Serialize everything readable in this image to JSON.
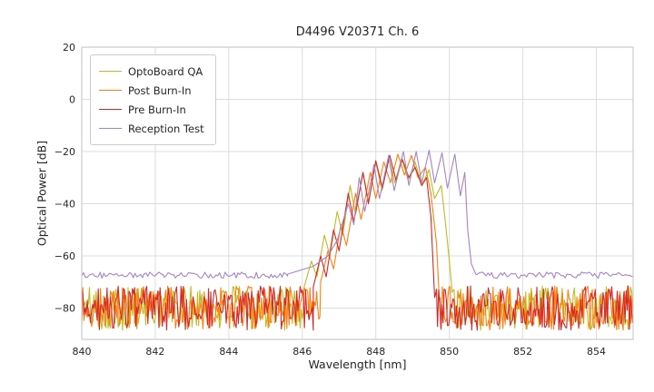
{
  "figure": {
    "background": "#ffffff",
    "grid_color": "#dcdcdc",
    "frame_color": "#cccccc",
    "text_color": "#262626",
    "tick_font_size": 11
  },
  "chart_data": {
    "type": "line",
    "title": "D4496 V20371 Ch. 6",
    "xlabel": "Wavelength [nm]",
    "ylabel": "Optical Power [dB]",
    "xlim": [
      840,
      855
    ],
    "ylim": [
      -92,
      20
    ],
    "xticks": [
      840,
      842,
      844,
      846,
      848,
      850,
      852,
      854
    ],
    "yticks": [
      20,
      0,
      -20,
      -40,
      -60,
      -80
    ],
    "grid": true,
    "legend_position": "upper left",
    "series": [
      {
        "name": "OptoBoard QA",
        "color": "#bcbd22",
        "noise_floor": {
          "level": -80,
          "amplitude": 8.5,
          "step": 0.03,
          "seed": 101,
          "left_until": 846.05,
          "right_from": 850.1
        },
        "envelope": [
          [
            846.05,
            -72
          ],
          [
            846.25,
            -62
          ],
          [
            846.4,
            -68
          ],
          [
            846.6,
            -52
          ],
          [
            846.75,
            -60
          ],
          [
            846.95,
            -43
          ],
          [
            847.1,
            -52
          ],
          [
            847.3,
            -33
          ],
          [
            847.45,
            -44
          ],
          [
            847.65,
            -28
          ],
          [
            847.8,
            -39
          ],
          [
            848.0,
            -24
          ],
          [
            848.17,
            -35
          ],
          [
            848.35,
            -22
          ],
          [
            848.52,
            -32
          ],
          [
            848.7,
            -22.5
          ],
          [
            848.88,
            -31
          ],
          [
            849.07,
            -24
          ],
          [
            849.25,
            -33
          ],
          [
            849.45,
            -27
          ],
          [
            849.6,
            -38
          ],
          [
            849.78,
            -33
          ],
          [
            849.9,
            -48
          ],
          [
            850.0,
            -62
          ],
          [
            850.08,
            -74
          ]
        ]
      },
      {
        "name": "Post Burn-In",
        "color": "#ff7f0e",
        "noise_floor": {
          "level": -80,
          "amplitude": 8.5,
          "step": 0.03,
          "seed": 202,
          "left_until": 846.5,
          "right_from": 849.75
        },
        "envelope": [
          [
            846.5,
            -70
          ],
          [
            846.7,
            -58
          ],
          [
            846.85,
            -65
          ],
          [
            847.05,
            -48
          ],
          [
            847.2,
            -56
          ],
          [
            847.45,
            -36
          ],
          [
            847.6,
            -46
          ],
          [
            847.85,
            -28
          ],
          [
            848.0,
            -38
          ],
          [
            848.22,
            -24
          ],
          [
            848.4,
            -32
          ],
          [
            848.6,
            -21
          ],
          [
            848.78,
            -29
          ],
          [
            848.97,
            -21.5
          ],
          [
            849.15,
            -30
          ],
          [
            849.35,
            -26
          ],
          [
            849.5,
            -36
          ],
          [
            849.65,
            -55
          ],
          [
            849.73,
            -77
          ]
        ]
      },
      {
        "name": "Pre Burn-In",
        "color": "#d62728",
        "noise_floor": {
          "level": -80,
          "amplitude": 8.5,
          "step": 0.03,
          "seed": 303,
          "left_until": 846.3,
          "right_from": 849.62
        },
        "envelope": [
          [
            846.3,
            -72
          ],
          [
            846.5,
            -60
          ],
          [
            846.65,
            -68
          ],
          [
            846.85,
            -50
          ],
          [
            847.0,
            -58
          ],
          [
            847.25,
            -36
          ],
          [
            847.4,
            -47
          ],
          [
            847.65,
            -28
          ],
          [
            847.8,
            -40
          ],
          [
            848.0,
            -23.5
          ],
          [
            848.18,
            -34
          ],
          [
            848.38,
            -21.5
          ],
          [
            848.55,
            -31
          ],
          [
            848.72,
            -23
          ],
          [
            848.9,
            -30
          ],
          [
            849.07,
            -26
          ],
          [
            849.25,
            -33
          ],
          [
            849.38,
            -30
          ],
          [
            849.5,
            -45
          ],
          [
            849.6,
            -76
          ]
        ]
      },
      {
        "name": "Reception Test",
        "color": "#a584c9",
        "noise_floor": {
          "level": -67.4,
          "amplitude": 1.2,
          "step": 0.05,
          "seed": 404,
          "left_until": 845.6,
          "right_from": 850.75
        },
        "envelope": [
          [
            845.6,
            -67
          ],
          [
            846.3,
            -64
          ],
          [
            846.7,
            -60
          ],
          [
            846.95,
            -54
          ],
          [
            847.1,
            -47
          ],
          [
            847.25,
            -40
          ],
          [
            847.4,
            -48
          ],
          [
            847.55,
            -30
          ],
          [
            847.7,
            -43
          ],
          [
            847.95,
            -25
          ],
          [
            848.1,
            -38
          ],
          [
            848.35,
            -21.5
          ],
          [
            848.5,
            -35
          ],
          [
            848.75,
            -20
          ],
          [
            848.9,
            -33
          ],
          [
            849.1,
            -20
          ],
          [
            849.25,
            -32
          ],
          [
            849.45,
            -19.5
          ],
          [
            849.6,
            -32
          ],
          [
            849.8,
            -20.5
          ],
          [
            849.95,
            -34
          ],
          [
            850.15,
            -21
          ],
          [
            850.3,
            -37
          ],
          [
            850.42,
            -28
          ],
          [
            850.5,
            -50
          ],
          [
            850.6,
            -63
          ],
          [
            850.72,
            -67
          ]
        ]
      }
    ]
  }
}
